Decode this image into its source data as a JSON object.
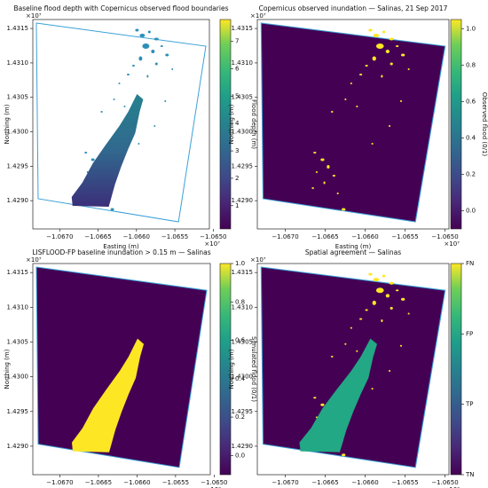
{
  "chart_data": [
    {
      "type": "map",
      "title": "Baseline flood depth with Copernicus observed flood boundaries",
      "x_label": "Easting (m)",
      "y_label": "Northing (m)",
      "x_offset": "×10⁷",
      "y_offset": "×10⁷",
      "xlim": [
        -1.06735,
        -1.06505
      ],
      "ylim": [
        1.42859,
        1.43163
      ],
      "xticks": [
        {
          "value": -1.067,
          "label": "−1.0670"
        },
        {
          "value": -1.0665,
          "label": "−1.0665"
        },
        {
          "value": -1.066,
          "label": "−1.0660"
        },
        {
          "value": -1.0655,
          "label": "−1.0655"
        },
        {
          "value": -1.065,
          "label": "−1.0650"
        }
      ],
      "yticks": [
        {
          "value": 1.429,
          "label": "1.4290"
        },
        {
          "value": 1.4295,
          "label": "1.4295"
        },
        {
          "value": 1.43,
          "label": "1.4300"
        },
        {
          "value": 1.4305,
          "label": "1.4305"
        },
        {
          "value": 1.431,
          "label": "1.4310"
        },
        {
          "value": 1.4315,
          "label": "1.4315"
        }
      ],
      "colorbar": {
        "label": "Flood depth (m)",
        "lim": [
          0.15,
          7.8
        ],
        "ticks": [
          1,
          2,
          3,
          4,
          5,
          6,
          7
        ]
      }
    },
    {
      "type": "map",
      "title": "Copernicus observed inundation — Salinas, 21 Sep 2017",
      "x_label": "Easting (m)",
      "y_label": "Northing (m)",
      "x_offset": "×10⁷",
      "y_offset": "×10⁷",
      "xlim": [
        -1.06735,
        -1.06495
      ],
      "ylim": [
        1.42859,
        1.43163
      ],
      "xticks": [
        {
          "value": -1.067,
          "label": "−1.0670"
        },
        {
          "value": -1.0665,
          "label": "−1.0665"
        },
        {
          "value": -1.066,
          "label": "−1.0660"
        },
        {
          "value": -1.0655,
          "label": "−1.0655"
        },
        {
          "value": -1.065,
          "label": "−1.0650"
        }
      ],
      "yticks": [
        {
          "value": 1.429,
          "label": "1.4290"
        },
        {
          "value": 1.4295,
          "label": "1.4295"
        },
        {
          "value": 1.43,
          "label": "1.4300"
        },
        {
          "value": 1.4305,
          "label": "1.4305"
        },
        {
          "value": 1.431,
          "label": "1.4310"
        },
        {
          "value": 1.4315,
          "label": "1.4315"
        }
      ],
      "colorbar": {
        "label": "Observed flood (0/1)",
        "lim": [
          -0.1,
          1.05
        ],
        "ticks": [
          {
            "value": 0,
            "label": "0.0"
          },
          {
            "value": 0.2,
            "label": "0.2"
          },
          {
            "value": 0.4,
            "label": "0.4"
          },
          {
            "value": 0.6,
            "label": "0.6"
          },
          {
            "value": 0.8,
            "label": "0.8"
          },
          {
            "value": 1,
            "label": "1.0"
          }
        ]
      }
    },
    {
      "type": "map",
      "title": "LISFLOOD-FP baseline inundation > 0.15 m — Salinas",
      "x_label": "Easting (m)",
      "y_label": "Northing (m)",
      "x_offset": "×10⁷",
      "y_offset": "×10⁷",
      "xlim": [
        -1.06735,
        -1.06505
      ],
      "ylim": [
        1.42859,
        1.43163
      ],
      "xticks": [
        {
          "value": -1.067,
          "label": "−1.0670"
        },
        {
          "value": -1.0665,
          "label": "−1.0665"
        },
        {
          "value": -1.066,
          "label": "−1.0660"
        },
        {
          "value": -1.0655,
          "label": "−1.0655"
        },
        {
          "value": -1.065,
          "label": "−1.0650"
        }
      ],
      "yticks": [
        {
          "value": 1.429,
          "label": "1.4290"
        },
        {
          "value": 1.4295,
          "label": "1.4295"
        },
        {
          "value": 1.43,
          "label": "1.4300"
        },
        {
          "value": 1.4305,
          "label": "1.4305"
        },
        {
          "value": 1.431,
          "label": "1.4310"
        },
        {
          "value": 1.4315,
          "label": "1.4315"
        }
      ],
      "colorbar": {
        "label": "Simulated flood (0/1)",
        "lim": [
          -0.1,
          1.0
        ],
        "ticks": [
          {
            "value": 0,
            "label": "0.0"
          },
          {
            "value": 0.2,
            "label": "0.2"
          },
          {
            "value": 0.4,
            "label": "0.4"
          },
          {
            "value": 0.6,
            "label": "0.6"
          },
          {
            "value": 0.8,
            "label": "0.8"
          },
          {
            "value": 1,
            "label": "1.0"
          }
        ]
      }
    },
    {
      "type": "map",
      "title": "Spatial agreement — Salinas",
      "x_label": "Easting (m)",
      "y_label": "Northing (m)",
      "x_offset": "×10⁷",
      "y_offset": "×10⁷",
      "xlim": [
        -1.06735,
        -1.06495
      ],
      "ylim": [
        1.42859,
        1.43163
      ],
      "xticks": [
        {
          "value": -1.067,
          "label": "−1.0670"
        },
        {
          "value": -1.0665,
          "label": "−1.0665"
        },
        {
          "value": -1.066,
          "label": "−1.0660"
        },
        {
          "value": -1.0655,
          "label": "−1.0655"
        },
        {
          "value": -1.065,
          "label": "−1.0650"
        }
      ],
      "yticks": [
        {
          "value": 1.429,
          "label": "1.4290"
        },
        {
          "value": 1.4295,
          "label": "1.4295"
        },
        {
          "value": 1.43,
          "label": "1.4300"
        },
        {
          "value": 1.4305,
          "label": "1.4305"
        },
        {
          "value": 1.431,
          "label": "1.4310"
        },
        {
          "value": 1.4315,
          "label": "1.4315"
        }
      ],
      "colorbar": {
        "label": "",
        "lim": [
          0,
          3
        ],
        "ticks": [
          {
            "value": 0,
            "label": "TN"
          },
          {
            "value": 1,
            "label": "TP"
          },
          {
            "value": 2,
            "label": "FP"
          },
          {
            "value": 3,
            "label": "FN"
          }
        ]
      }
    }
  ]
}
